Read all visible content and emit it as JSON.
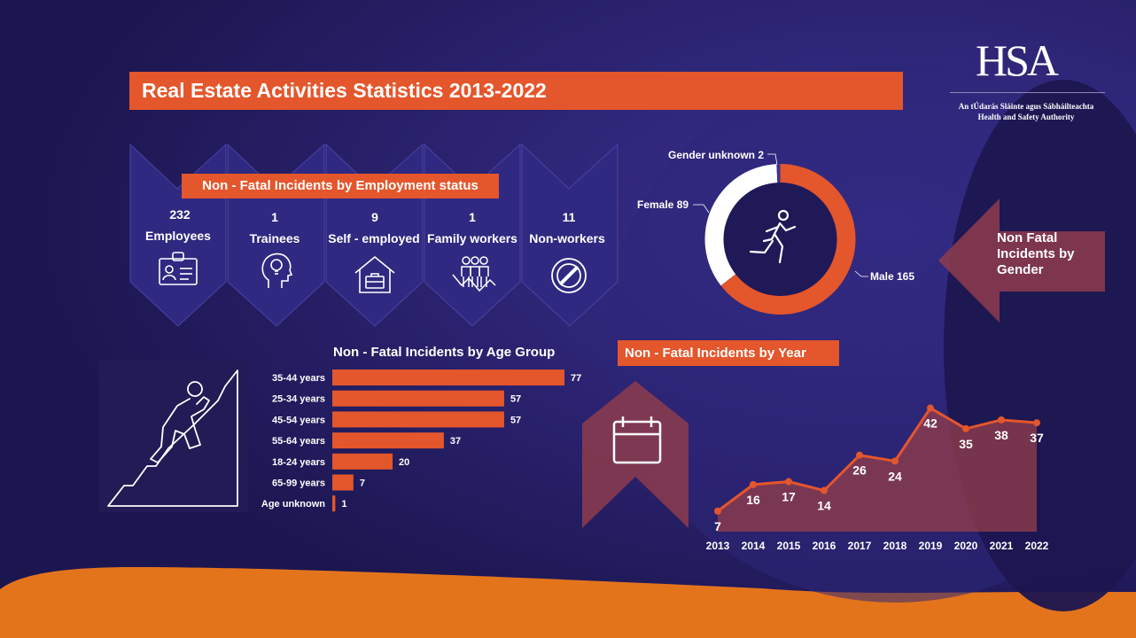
{
  "title": "Real Estate Activities Statistics 2013-2022",
  "logo": {
    "text": "HSA",
    "sub_irish": "An tÚdarás Sláinte agus Sábháilteachta",
    "sub_english": "Health and Safety Authority"
  },
  "employment": {
    "title": "Non - Fatal Incidents by Employment status",
    "items": [
      {
        "count": "232",
        "label": "Employees",
        "icon": "id-card-icon"
      },
      {
        "count": "1",
        "label": "Trainees",
        "icon": "head-lightbulb-icon"
      },
      {
        "count": "9",
        "label": "Self - employed",
        "icon": "house-briefcase-icon"
      },
      {
        "count": "1",
        "label": "Family workers",
        "icon": "family-group-icon"
      },
      {
        "count": "11",
        "label": "Non-workers",
        "icon": "prohibited-icon"
      }
    ]
  },
  "gender": {
    "title": "Non Fatal Incidents by Gender",
    "icon": "running-person-icon"
  },
  "age_title": "Non - Fatal Incidents by Age Group",
  "year_title": "Non - Fatal Incidents by Year",
  "icons": {
    "age": "climber-icon",
    "year": "calendar-icon"
  },
  "colors": {
    "accent": "#e4562b",
    "background": "#231c5c",
    "donut_female": "#ffffff",
    "line": "#e4562b"
  },
  "chart_data": [
    {
      "type": "pie",
      "title": "Non Fatal Incidents by Gender",
      "labels": [
        "Male",
        "Female",
        "Gender unknown"
      ],
      "values": [
        165,
        89,
        2
      ],
      "data_labels": [
        "Male 165",
        "Female 89",
        "Gender unknown 2"
      ]
    },
    {
      "type": "bar",
      "orientation": "horizontal",
      "title": "Non - Fatal Incidents by Age Group",
      "categories": [
        "35-44 years",
        "25-34 years",
        "45-54 years",
        "55-64 years",
        "18-24 years",
        "65-99 years",
        "Age unknown"
      ],
      "values": [
        77,
        57,
        57,
        37,
        20,
        7,
        1
      ],
      "xlim": [
        0,
        77
      ]
    },
    {
      "type": "line",
      "title": "Non - Fatal Incidents by Year",
      "x": [
        "2013",
        "2014",
        "2015",
        "2016",
        "2017",
        "2018",
        "2019",
        "2020",
        "2021",
        "2022"
      ],
      "values": [
        7,
        16,
        17,
        14,
        26,
        24,
        42,
        35,
        38,
        37
      ],
      "ylim": [
        0,
        45
      ]
    }
  ]
}
